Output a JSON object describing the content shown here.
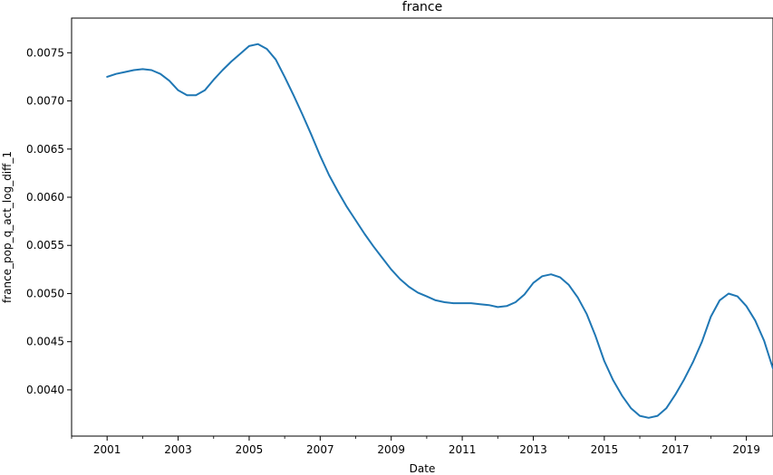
{
  "chart_data": {
    "type": "line",
    "title": "france",
    "xlabel": "Date",
    "ylabel": "france_pop_q_act_log_diff_1",
    "x_ticks": [
      "2001",
      "2003",
      "2005",
      "2007",
      "2009",
      "2011",
      "2013",
      "2015",
      "2017",
      "2019"
    ],
    "y_ticks": [
      "0.0040",
      "0.0045",
      "0.0050",
      "0.0055",
      "0.0060",
      "0.0065",
      "0.0070",
      "0.0075"
    ],
    "xlim": [
      "2000-01-01",
      "2019-10-01"
    ],
    "ylim": [
      0.00352,
      0.00786
    ],
    "grid": false,
    "series": [
      {
        "color": "#1f77b4",
        "x": [
          "2001-01-01",
          "2001-04-01",
          "2001-07-01",
          "2001-10-01",
          "2002-01-01",
          "2002-04-01",
          "2002-07-01",
          "2002-10-01",
          "2003-01-01",
          "2003-04-01",
          "2003-07-01",
          "2003-10-01",
          "2004-01-01",
          "2004-04-01",
          "2004-07-01",
          "2004-10-01",
          "2005-01-01",
          "2005-04-01",
          "2005-07-01",
          "2005-10-01",
          "2006-01-01",
          "2006-04-01",
          "2006-07-01",
          "2006-10-01",
          "2007-01-01",
          "2007-04-01",
          "2007-07-01",
          "2007-10-01",
          "2008-01-01",
          "2008-04-01",
          "2008-07-01",
          "2008-10-01",
          "2009-01-01",
          "2009-04-01",
          "2009-07-01",
          "2009-10-01",
          "2010-01-01",
          "2010-04-01",
          "2010-07-01",
          "2010-10-01",
          "2011-01-01",
          "2011-04-01",
          "2011-07-01",
          "2011-10-01",
          "2012-01-01",
          "2012-04-01",
          "2012-07-01",
          "2012-10-01",
          "2013-01-01",
          "2013-04-01",
          "2013-07-01",
          "2013-10-01",
          "2014-01-01",
          "2014-04-01",
          "2014-07-01",
          "2014-10-01",
          "2015-01-01",
          "2015-04-01",
          "2015-07-01",
          "2015-10-01",
          "2016-01-01",
          "2016-04-01",
          "2016-07-01",
          "2016-10-01",
          "2017-01-01",
          "2017-04-01",
          "2017-07-01",
          "2017-10-01",
          "2018-01-01",
          "2018-04-01",
          "2018-07-01",
          "2018-10-01",
          "2019-01-01",
          "2019-04-01",
          "2019-07-01",
          "2019-10-01"
        ],
        "y": [
          0.00725,
          0.00728,
          0.0073,
          0.00732,
          0.00733,
          0.00732,
          0.00728,
          0.00721,
          0.00711,
          0.00706,
          0.00706,
          0.00711,
          0.00722,
          0.00732,
          0.00741,
          0.00749,
          0.00757,
          0.00759,
          0.00754,
          0.00743,
          0.00725,
          0.00706,
          0.00686,
          0.00665,
          0.00643,
          0.00623,
          0.00606,
          0.0059,
          0.00576,
          0.00562,
          0.00549,
          0.00537,
          0.00525,
          0.00515,
          0.00507,
          0.00501,
          0.00497,
          0.00493,
          0.00491,
          0.0049,
          0.0049,
          0.0049,
          0.00489,
          0.00488,
          0.00486,
          0.00487,
          0.00491,
          0.00499,
          0.00511,
          0.00518,
          0.0052,
          0.00517,
          0.00509,
          0.00496,
          0.00479,
          0.00456,
          0.0043,
          0.0041,
          0.00394,
          0.00381,
          0.00373,
          0.00371,
          0.00373,
          0.00381,
          0.00395,
          0.00411,
          0.00429,
          0.0045,
          0.00476,
          0.00493,
          0.005,
          0.00497,
          0.00487,
          0.00472,
          0.00451,
          0.00422
        ]
      }
    ]
  }
}
